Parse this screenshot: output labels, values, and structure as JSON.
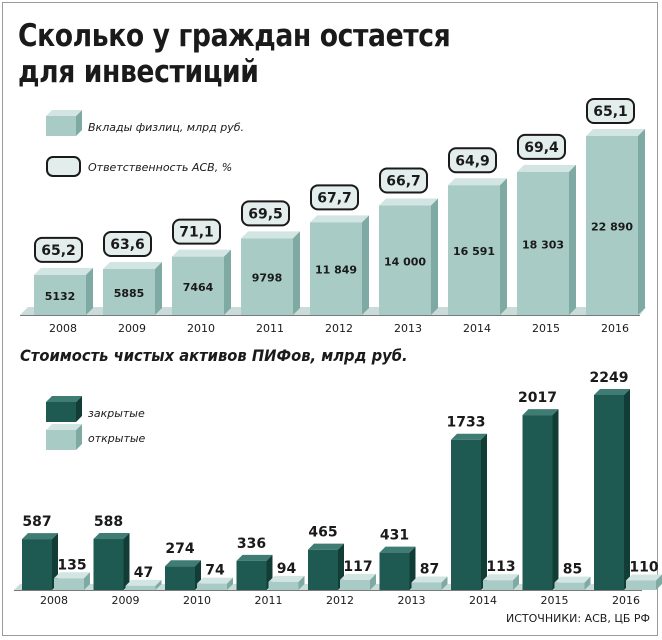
{
  "title_line1": "Сколько у граждан остается",
  "title_line2": "для инвестиций",
  "source": "ИСТОЧНИКИ: АСВ, ЦБ РФ",
  "colors": {
    "light_face": "#a9cbc6",
    "light_top": "#d3e5e2",
    "light_side": "#7fa9a3",
    "dark_face": "#1f5a52",
    "dark_top": "#3f7d74",
    "dark_side": "#123d37",
    "badge_fill": "#e3eeec",
    "badge_border": "#1a1a1a",
    "base": "#c9dcd9"
  },
  "chart_data": [
    {
      "type": "bar",
      "categories": [
        "2008",
        "2009",
        "2010",
        "2011",
        "2012",
        "2013",
        "2014",
        "2015",
        "2016"
      ],
      "series": [
        {
          "name": "Вклады физлиц, млрд руб.",
          "values": [
            5132,
            5885,
            7464,
            9798,
            11849,
            14000,
            16591,
            18303,
            22890
          ],
          "value_labels": [
            "5132",
            "5885",
            "7464",
            "9798",
            "11 849",
            "14 000",
            "16 591",
            "18 303",
            "22 890"
          ]
        },
        {
          "name": "Ответственность АСВ, %",
          "values": [
            65.2,
            63.6,
            71.1,
            69.5,
            67.7,
            66.7,
            64.9,
            69.4,
            65.1
          ],
          "value_labels": [
            "65,2",
            "63,6",
            "71,1",
            "69,5",
            "67,7",
            "66,7",
            "64,9",
            "69,4",
            "65,1"
          ]
        }
      ],
      "legend": "top-left"
    },
    {
      "type": "bar",
      "title": "Стоимость чистых активов ПИФов, млрд руб.",
      "categories": [
        "2008",
        "2009",
        "2010",
        "2011",
        "2012",
        "2013",
        "2014",
        "2015",
        "2016"
      ],
      "series": [
        {
          "name": "закрытые",
          "values": [
            587,
            588,
            274,
            336,
            465,
            431,
            1733,
            2017,
            2249
          ]
        },
        {
          "name": "открытые",
          "values": [
            135,
            47,
            74,
            94,
            117,
            87,
            113,
            85,
            110
          ]
        }
      ],
      "legend": "top-left"
    }
  ]
}
